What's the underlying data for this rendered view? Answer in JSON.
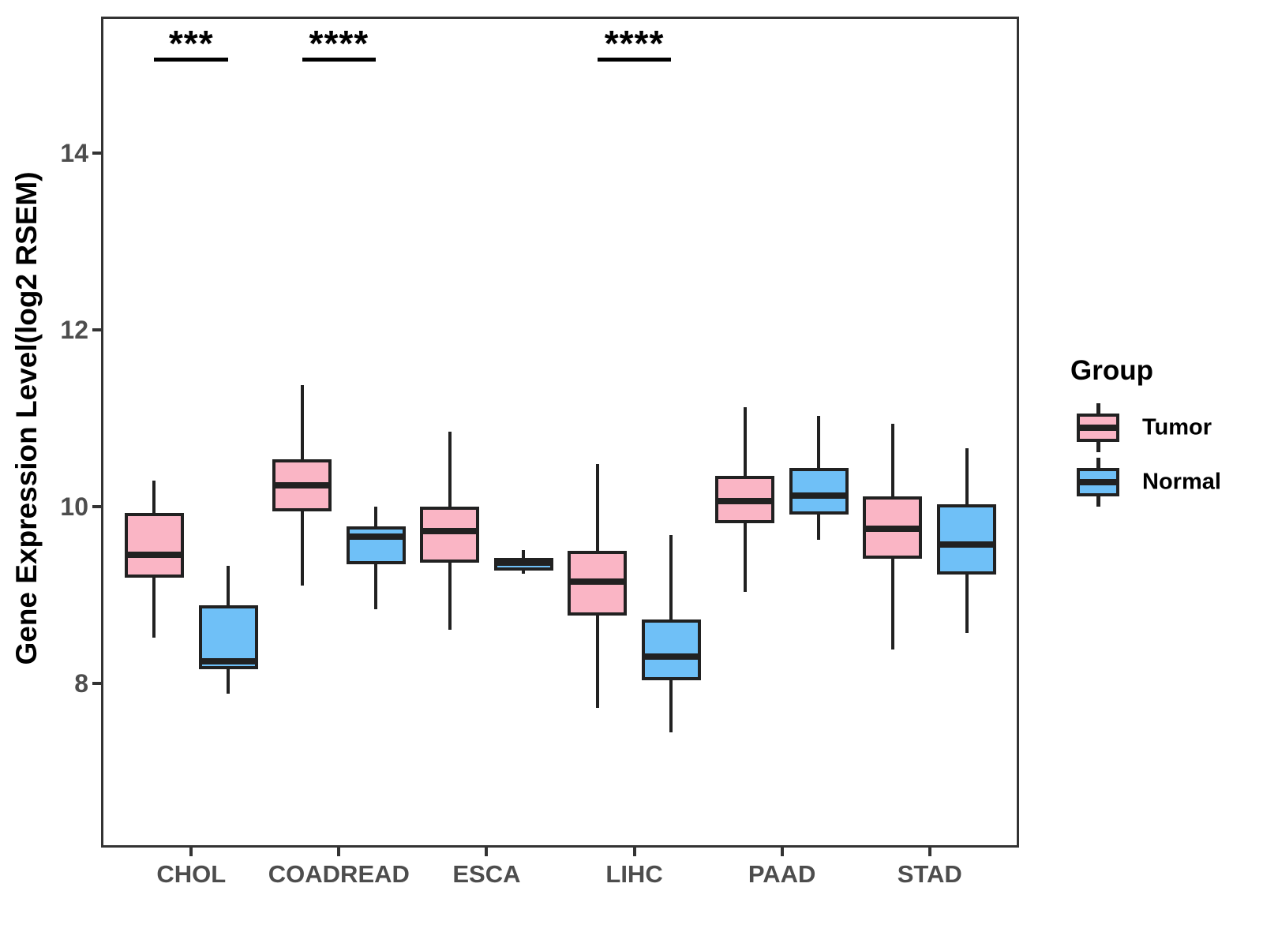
{
  "figure": {
    "background": "#FFFFFF",
    "y_axis": {
      "title": "Gene Expression Level(log2 RSEM)",
      "ticks": [
        8,
        10,
        12,
        14
      ]
    },
    "x_axis": {
      "categories": [
        "CHOL",
        "COADREAD",
        "ESCA",
        "LIHC",
        "PAAD",
        "STAD"
      ]
    },
    "legend": {
      "title": "Group",
      "position": "right",
      "items": [
        {
          "label": "Tumor",
          "color": "#FAB5C5"
        },
        {
          "label": "Normal",
          "color": "#6FC0F7"
        }
      ]
    }
  },
  "chart_data": {
    "type": "boxplot",
    "title": "",
    "xlabel": "",
    "ylabel": "Gene Expression Level(log2 RSEM)",
    "categories": [
      "CHOL",
      "COADREAD",
      "ESCA",
      "LIHC",
      "PAAD",
      "STAD"
    ],
    "groups": [
      "Tumor",
      "Normal"
    ],
    "ylim": [
      6.16,
      15.53
    ],
    "yticks": [
      8,
      10,
      12,
      14
    ],
    "grid": false,
    "legend_position": "right",
    "colors": {
      "tumor_fill": "#FAB5C5",
      "normal_fill": "#6FC0F7",
      "box_stroke": "#212121",
      "axis_text": "#4D4D4D",
      "panel_border": "#333333"
    },
    "series": [
      {
        "name": "Tumor",
        "color": "#FAB5C5",
        "boxes": [
          {
            "category": "CHOL",
            "whisker_low": 8.52,
            "q1": 9.2,
            "median": 9.46,
            "q3": 9.93,
            "whisker_high": 10.3
          },
          {
            "category": "COADREAD",
            "whisker_low": 9.11,
            "q1": 9.95,
            "median": 10.24,
            "q3": 10.54,
            "whisker_high": 11.38
          },
          {
            "category": "ESCA",
            "whisker_low": 8.61,
            "q1": 9.37,
            "median": 9.72,
            "q3": 10.0,
            "whisker_high": 10.85
          },
          {
            "category": "LIHC",
            "whisker_low": 7.72,
            "q1": 8.77,
            "median": 9.15,
            "q3": 9.5,
            "whisker_high": 10.48
          },
          {
            "category": "PAAD",
            "whisker_low": 9.04,
            "q1": 9.81,
            "median": 10.06,
            "q3": 10.35,
            "whisker_high": 11.13
          },
          {
            "category": "STAD",
            "whisker_low": 8.38,
            "q1": 9.41,
            "median": 9.75,
            "q3": 10.12,
            "whisker_high": 10.94
          }
        ]
      },
      {
        "name": "Normal",
        "color": "#6FC0F7",
        "boxes": [
          {
            "category": "CHOL",
            "whisker_low": 7.88,
            "q1": 8.16,
            "median": 8.25,
            "q3": 8.88,
            "whisker_high": 9.33
          },
          {
            "category": "COADREAD",
            "whisker_low": 8.84,
            "q1": 9.35,
            "median": 9.66,
            "q3": 9.78,
            "whisker_high": 10.0
          },
          {
            "category": "ESCA",
            "whisker_low": 9.24,
            "q1": 9.28,
            "median": 9.37,
            "q3": 9.42,
            "whisker_high": 9.51
          },
          {
            "category": "LIHC",
            "whisker_low": 7.45,
            "q1": 8.04,
            "median": 8.3,
            "q3": 8.72,
            "whisker_high": 9.68
          },
          {
            "category": "PAAD",
            "whisker_low": 9.63,
            "q1": 9.91,
            "median": 10.13,
            "q3": 10.44,
            "whisker_high": 11.03
          },
          {
            "category": "STAD",
            "whisker_low": 8.57,
            "q1": 9.23,
            "median": 9.57,
            "q3": 10.03,
            "whisker_high": 10.66
          }
        ]
      }
    ],
    "significance": [
      {
        "category": "CHOL",
        "label": "***"
      },
      {
        "category": "COADREAD",
        "label": "****"
      },
      {
        "category": "LIHC",
        "label": "****"
      }
    ]
  }
}
